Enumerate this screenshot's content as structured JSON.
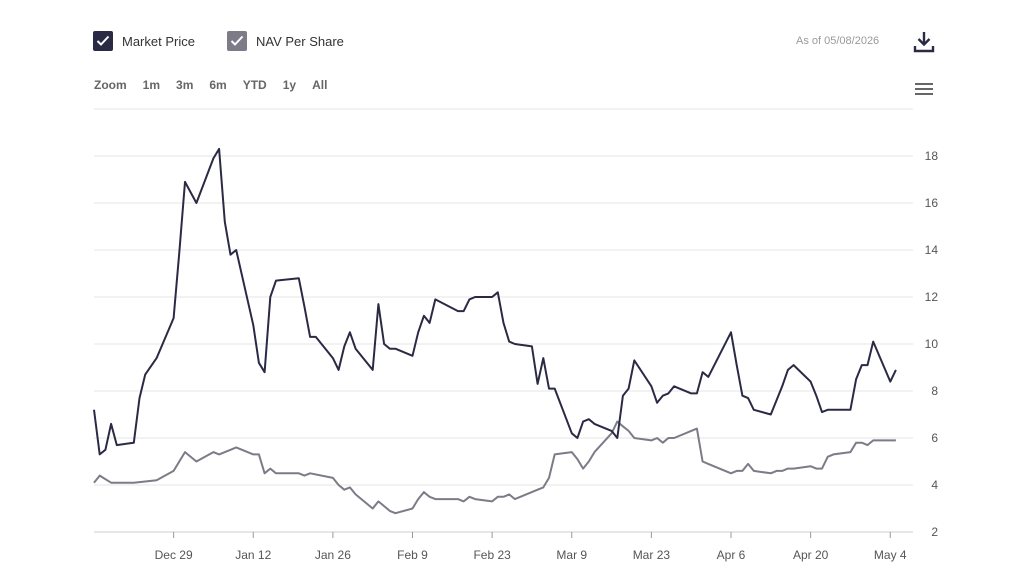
{
  "legend": {
    "market_price": "Market Price",
    "nav_per_share": "NAV Per Share"
  },
  "as_of": "As of 05/08/2026",
  "zoom": {
    "label": "Zoom",
    "buttons": [
      "1m",
      "3m",
      "6m",
      "YTD",
      "1y",
      "All"
    ]
  },
  "icons": {
    "download": "download-icon",
    "menu": "hamburger-menu-icon",
    "check": "check-icon"
  },
  "colors": {
    "market_price": "#2b2a45",
    "nav_per_share": "#7c7b87",
    "grid": "#e6e6e6"
  },
  "chart_data": {
    "type": "line",
    "x_start": "2025-12-15",
    "x_end": "2026-05-08",
    "xticks": [
      {
        "label": "Dec 29",
        "date": "2025-12-29"
      },
      {
        "label": "Jan 12",
        "date": "2026-01-12"
      },
      {
        "label": "Jan 26",
        "date": "2026-01-26"
      },
      {
        "label": "Feb 9",
        "date": "2026-02-09"
      },
      {
        "label": "Feb 23",
        "date": "2026-02-23"
      },
      {
        "label": "Mar 9",
        "date": "2026-03-09"
      },
      {
        "label": "Mar 23",
        "date": "2026-03-23"
      },
      {
        "label": "Apr 6",
        "date": "2026-04-06"
      },
      {
        "label": "Apr 20",
        "date": "2026-04-20"
      },
      {
        "label": "May 4",
        "date": "2026-05-04"
      }
    ],
    "yticks": [
      2,
      4,
      6,
      8,
      10,
      12,
      14,
      16,
      18
    ],
    "ylim": [
      2,
      20
    ],
    "grid": true,
    "legend_position": "top-left",
    "series": [
      {
        "name": "Market Price",
        "points": [
          [
            "2025-12-15",
            7.2
          ],
          [
            "2025-12-16",
            5.3
          ],
          [
            "2025-12-17",
            5.5
          ],
          [
            "2025-12-18",
            6.6
          ],
          [
            "2025-12-19",
            5.7
          ],
          [
            "2025-12-22",
            5.8
          ],
          [
            "2025-12-23",
            7.7
          ],
          [
            "2025-12-24",
            8.7
          ],
          [
            "2025-12-26",
            9.4
          ],
          [
            "2025-12-29",
            11.1
          ],
          [
            "2025-12-30",
            13.9
          ],
          [
            "2025-12-31",
            16.9
          ],
          [
            "2026-01-02",
            16.0
          ],
          [
            "2026-01-05",
            17.9
          ],
          [
            "2026-01-06",
            18.3
          ],
          [
            "2026-01-07",
            15.2
          ],
          [
            "2026-01-08",
            13.8
          ],
          [
            "2026-01-09",
            14.0
          ],
          [
            "2026-01-12",
            10.8
          ],
          [
            "2026-01-13",
            9.2
          ],
          [
            "2026-01-14",
            8.8
          ],
          [
            "2026-01-15",
            12.0
          ],
          [
            "2026-01-16",
            12.7
          ],
          [
            "2026-01-20",
            12.8
          ],
          [
            "2026-01-21",
            11.6
          ],
          [
            "2026-01-22",
            10.3
          ],
          [
            "2026-01-23",
            10.3
          ],
          [
            "2026-01-26",
            9.4
          ],
          [
            "2026-01-27",
            8.9
          ],
          [
            "2026-01-28",
            9.9
          ],
          [
            "2026-01-29",
            10.5
          ],
          [
            "2026-01-30",
            9.8
          ],
          [
            "2026-02-02",
            8.9
          ],
          [
            "2026-02-03",
            11.7
          ],
          [
            "2026-02-04",
            10.0
          ],
          [
            "2026-02-05",
            9.8
          ],
          [
            "2026-02-06",
            9.8
          ],
          [
            "2026-02-09",
            9.5
          ],
          [
            "2026-02-10",
            10.5
          ],
          [
            "2026-02-11",
            11.2
          ],
          [
            "2026-02-12",
            10.9
          ],
          [
            "2026-02-13",
            11.9
          ],
          [
            "2026-02-17",
            11.4
          ],
          [
            "2026-02-18",
            11.4
          ],
          [
            "2026-02-19",
            11.9
          ],
          [
            "2026-02-20",
            12.0
          ],
          [
            "2026-02-23",
            12.0
          ],
          [
            "2026-02-24",
            12.2
          ],
          [
            "2026-02-25",
            10.9
          ],
          [
            "2026-02-26",
            10.1
          ],
          [
            "2026-02-27",
            10.0
          ],
          [
            "2026-03-02",
            9.9
          ],
          [
            "2026-03-03",
            8.3
          ],
          [
            "2026-03-04",
            9.4
          ],
          [
            "2026-03-05",
            8.1
          ],
          [
            "2026-03-06",
            8.1
          ],
          [
            "2026-03-09",
            6.2
          ],
          [
            "2026-03-10",
            6.0
          ],
          [
            "2026-03-11",
            6.7
          ],
          [
            "2026-03-12",
            6.8
          ],
          [
            "2026-03-13",
            6.6
          ],
          [
            "2026-03-16",
            6.3
          ],
          [
            "2026-03-17",
            6.0
          ],
          [
            "2026-03-18",
            7.8
          ],
          [
            "2026-03-19",
            8.1
          ],
          [
            "2026-03-20",
            9.3
          ],
          [
            "2026-03-23",
            8.2
          ],
          [
            "2026-03-24",
            7.5
          ],
          [
            "2026-03-25",
            7.8
          ],
          [
            "2026-03-26",
            7.9
          ],
          [
            "2026-03-27",
            8.2
          ],
          [
            "2026-03-30",
            7.9
          ],
          [
            "2026-03-31",
            7.9
          ],
          [
            "2026-04-01",
            8.8
          ],
          [
            "2026-04-02",
            8.6
          ],
          [
            "2026-04-06",
            10.5
          ],
          [
            "2026-04-07",
            9.1
          ],
          [
            "2026-04-08",
            7.8
          ],
          [
            "2026-04-09",
            7.7
          ],
          [
            "2026-04-10",
            7.2
          ],
          [
            "2026-04-13",
            7.0
          ],
          [
            "2026-04-14",
            7.6
          ],
          [
            "2026-04-15",
            8.2
          ],
          [
            "2026-04-16",
            8.9
          ],
          [
            "2026-04-17",
            9.1
          ],
          [
            "2026-04-20",
            8.4
          ],
          [
            "2026-04-21",
            7.8
          ],
          [
            "2026-04-22",
            7.1
          ],
          [
            "2026-04-23",
            7.2
          ],
          [
            "2026-04-24",
            7.2
          ],
          [
            "2026-04-27",
            7.2
          ],
          [
            "2026-04-28",
            8.5
          ],
          [
            "2026-04-29",
            9.1
          ],
          [
            "2026-04-30",
            9.1
          ],
          [
            "2026-05-01",
            10.1
          ],
          [
            "2026-05-04",
            8.4
          ],
          [
            "2026-05-05",
            8.9
          ]
        ]
      },
      {
        "name": "NAV Per Share",
        "points": [
          [
            "2025-12-15",
            4.1
          ],
          [
            "2025-12-16",
            4.4
          ],
          [
            "2025-12-18",
            4.1
          ],
          [
            "2025-12-22",
            4.1
          ],
          [
            "2025-12-26",
            4.2
          ],
          [
            "2025-12-29",
            4.6
          ],
          [
            "2025-12-31",
            5.4
          ],
          [
            "2026-01-02",
            5.0
          ],
          [
            "2026-01-05",
            5.4
          ],
          [
            "2026-01-06",
            5.3
          ],
          [
            "2026-01-08",
            5.5
          ],
          [
            "2026-01-09",
            5.6
          ],
          [
            "2026-01-12",
            5.3
          ],
          [
            "2026-01-13",
            5.3
          ],
          [
            "2026-01-14",
            4.5
          ],
          [
            "2026-01-15",
            4.7
          ],
          [
            "2026-01-16",
            4.5
          ],
          [
            "2026-01-20",
            4.5
          ],
          [
            "2026-01-21",
            4.4
          ],
          [
            "2026-01-22",
            4.5
          ],
          [
            "2026-01-26",
            4.3
          ],
          [
            "2026-01-27",
            4.0
          ],
          [
            "2026-01-28",
            3.8
          ],
          [
            "2026-01-29",
            3.9
          ],
          [
            "2026-01-30",
            3.6
          ],
          [
            "2026-02-02",
            3.0
          ],
          [
            "2026-02-03",
            3.3
          ],
          [
            "2026-02-04",
            3.1
          ],
          [
            "2026-02-05",
            2.9
          ],
          [
            "2026-02-06",
            2.8
          ],
          [
            "2026-02-09",
            3.0
          ],
          [
            "2026-02-10",
            3.4
          ],
          [
            "2026-02-11",
            3.7
          ],
          [
            "2026-02-12",
            3.5
          ],
          [
            "2026-02-13",
            3.4
          ],
          [
            "2026-02-17",
            3.4
          ],
          [
            "2026-02-18",
            3.3
          ],
          [
            "2026-02-19",
            3.5
          ],
          [
            "2026-02-20",
            3.4
          ],
          [
            "2026-02-23",
            3.3
          ],
          [
            "2026-02-24",
            3.5
          ],
          [
            "2026-02-25",
            3.5
          ],
          [
            "2026-02-26",
            3.6
          ],
          [
            "2026-02-27",
            3.4
          ],
          [
            "2026-03-02",
            3.7
          ],
          [
            "2026-03-03",
            3.8
          ],
          [
            "2026-03-04",
            3.9
          ],
          [
            "2026-03-05",
            4.3
          ],
          [
            "2026-03-06",
            5.3
          ],
          [
            "2026-03-09",
            5.4
          ],
          [
            "2026-03-10",
            5.1
          ],
          [
            "2026-03-11",
            4.7
          ],
          [
            "2026-03-12",
            5.0
          ],
          [
            "2026-03-13",
            5.4
          ],
          [
            "2026-03-16",
            6.2
          ],
          [
            "2026-03-17",
            6.7
          ],
          [
            "2026-03-18",
            6.5
          ],
          [
            "2026-03-19",
            6.3
          ],
          [
            "2026-03-20",
            6.0
          ],
          [
            "2026-03-23",
            5.9
          ],
          [
            "2026-03-24",
            6.0
          ],
          [
            "2026-03-25",
            5.8
          ],
          [
            "2026-03-26",
            6.0
          ],
          [
            "2026-03-27",
            6.0
          ],
          [
            "2026-03-30",
            6.3
          ],
          [
            "2026-03-31",
            6.4
          ],
          [
            "2026-04-01",
            5.0
          ],
          [
            "2026-04-02",
            4.9
          ],
          [
            "2026-04-06",
            4.5
          ],
          [
            "2026-04-07",
            4.6
          ],
          [
            "2026-04-08",
            4.6
          ],
          [
            "2026-04-09",
            4.9
          ],
          [
            "2026-04-10",
            4.6
          ],
          [
            "2026-04-13",
            4.5
          ],
          [
            "2026-04-14",
            4.6
          ],
          [
            "2026-04-15",
            4.6
          ],
          [
            "2026-04-16",
            4.7
          ],
          [
            "2026-04-17",
            4.7
          ],
          [
            "2026-04-20",
            4.8
          ],
          [
            "2026-04-21",
            4.7
          ],
          [
            "2026-04-22",
            4.7
          ],
          [
            "2026-04-23",
            5.2
          ],
          [
            "2026-04-24",
            5.3
          ],
          [
            "2026-04-27",
            5.4
          ],
          [
            "2026-04-28",
            5.8
          ],
          [
            "2026-04-29",
            5.8
          ],
          [
            "2026-04-30",
            5.7
          ],
          [
            "2026-05-01",
            5.9
          ],
          [
            "2026-05-04",
            5.9
          ],
          [
            "2026-05-05",
            5.9
          ]
        ]
      }
    ]
  }
}
